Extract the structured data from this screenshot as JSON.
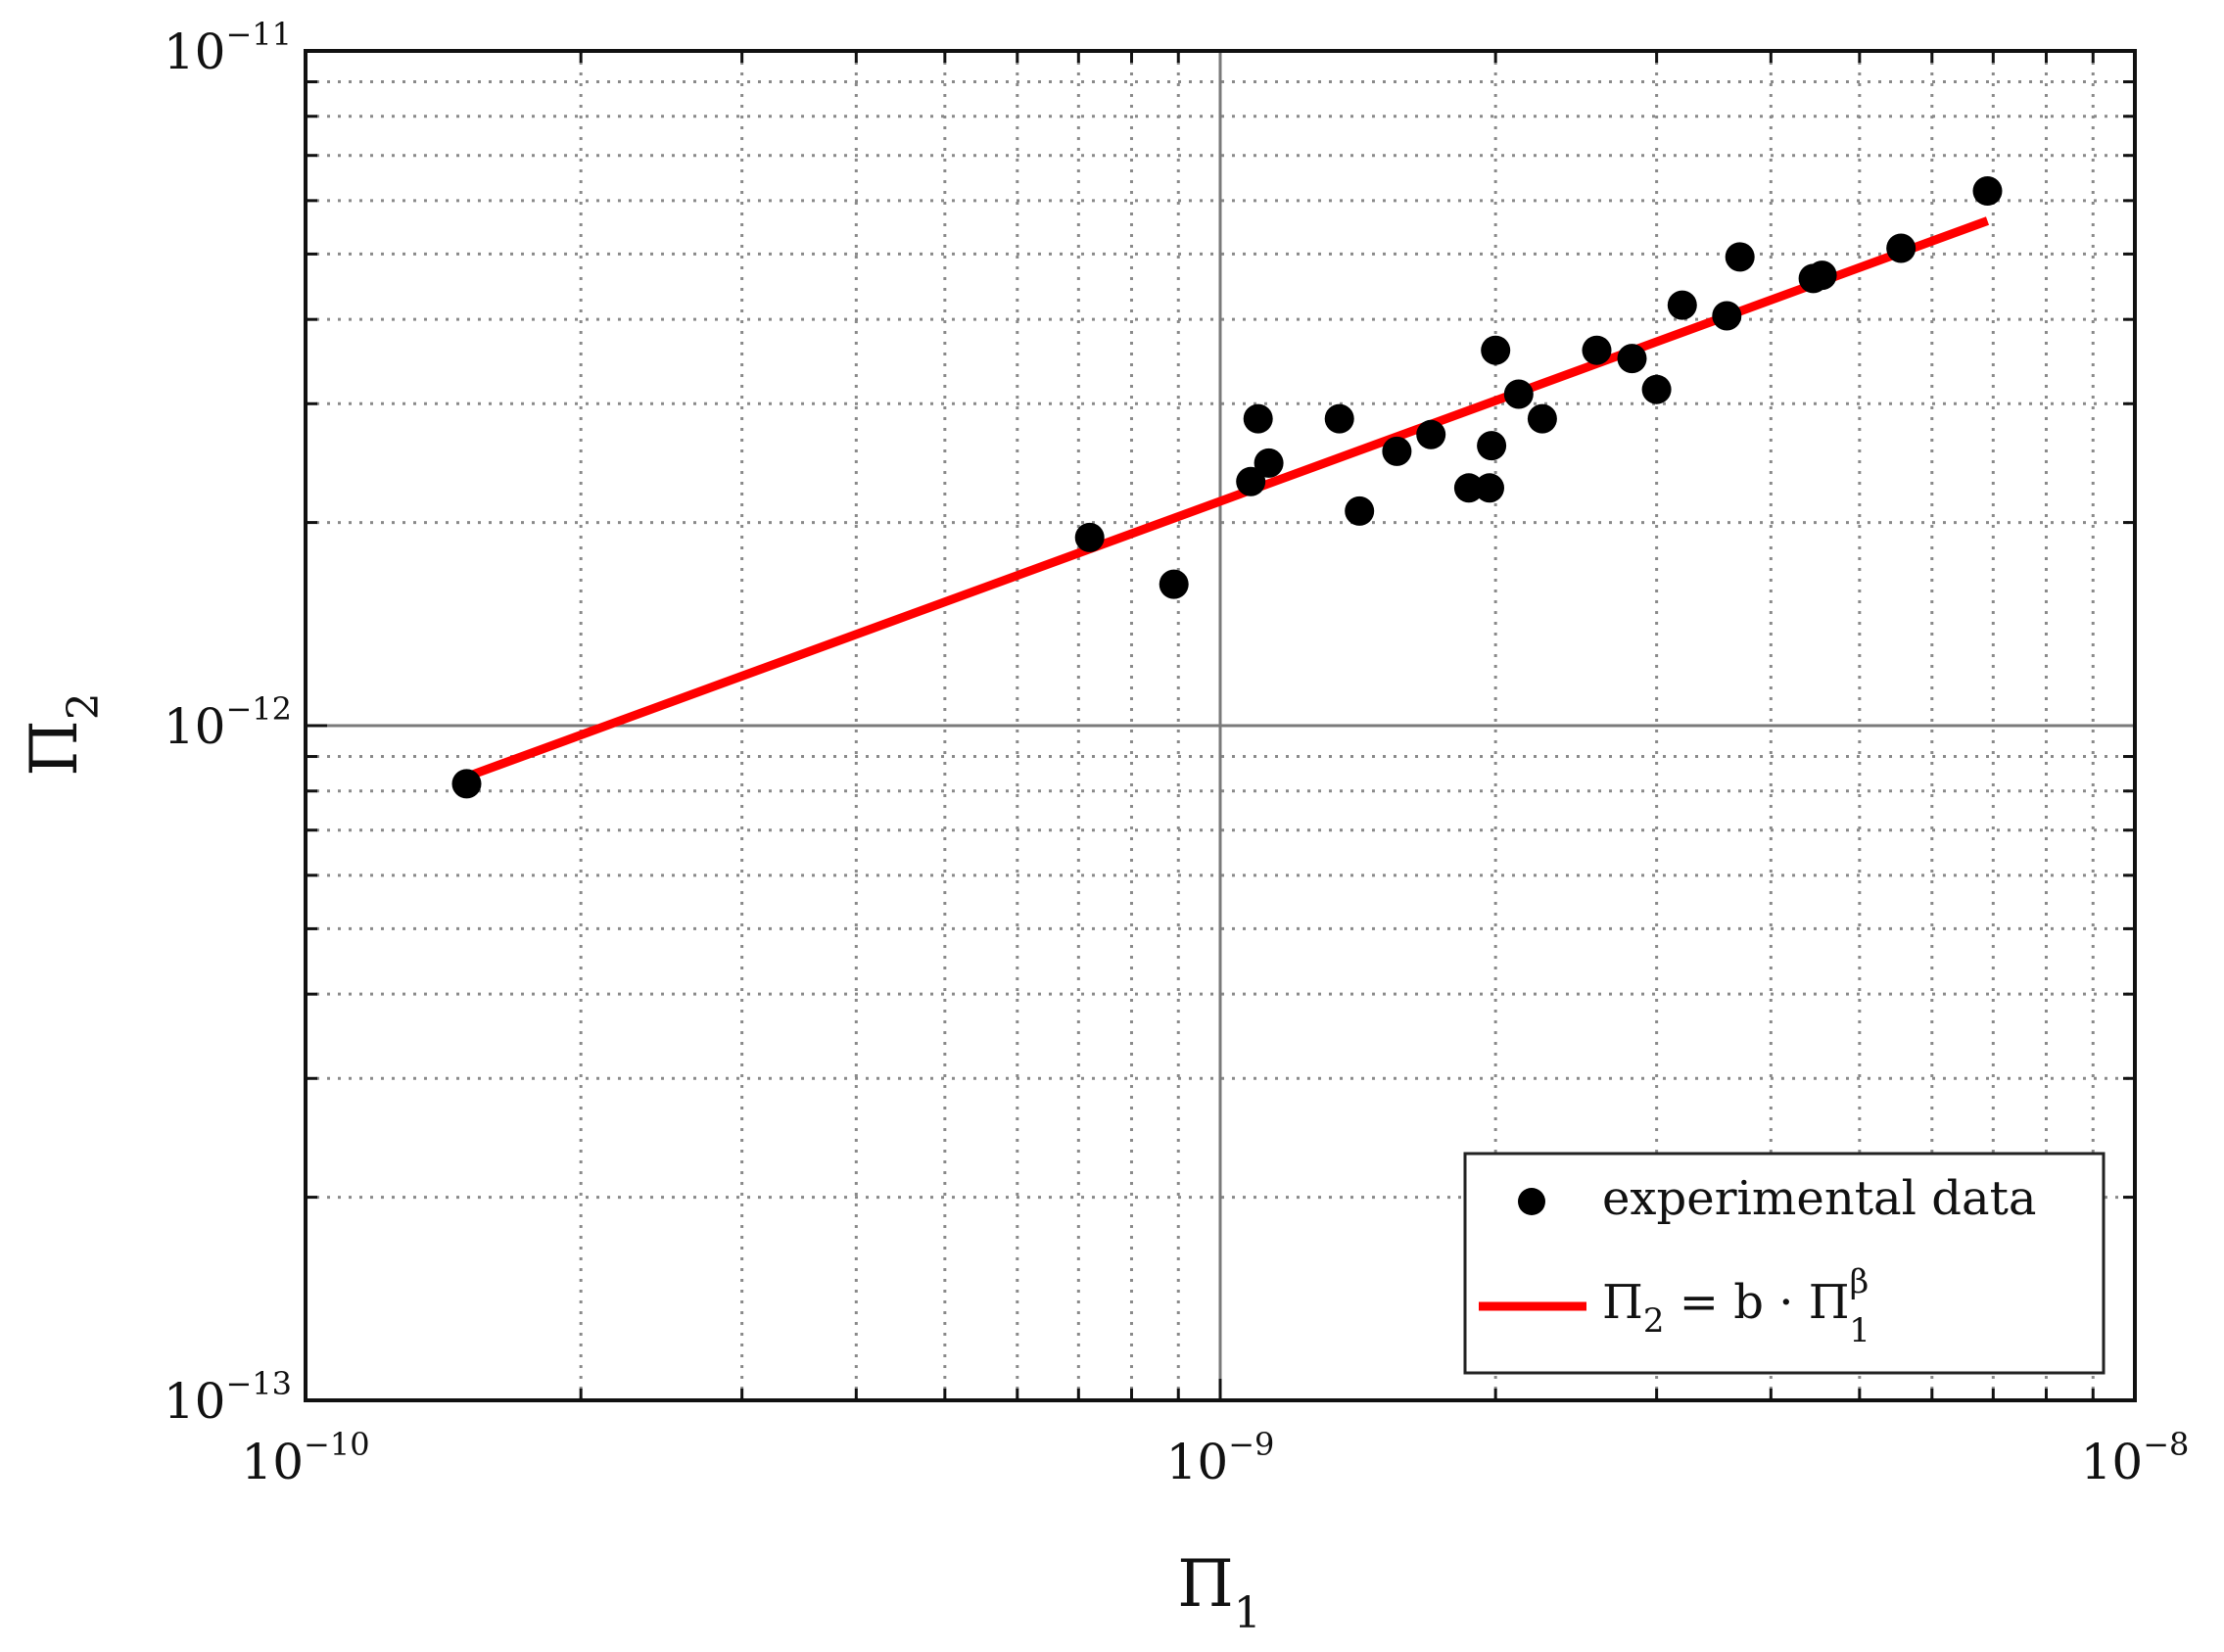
{
  "chart_data": {
    "type": "scatter",
    "x_scale": "log",
    "y_scale": "log",
    "xlim": [
      1e-10,
      1e-08
    ],
    "ylim": [
      1e-13,
      1e-11
    ],
    "x_ticks": [
      {
        "base": "10",
        "exp": "−10"
      },
      {
        "base": "10",
        "exp": "−9"
      },
      {
        "base": "10",
        "exp": "−8"
      }
    ],
    "y_ticks": [
      {
        "base": "10",
        "exp": "−13"
      },
      {
        "base": "10",
        "exp": "−12"
      },
      {
        "base": "10",
        "exp": "−11"
      }
    ],
    "xlabel": {
      "symbol": "Π",
      "sub": "1"
    },
    "ylabel": {
      "symbol": "Π",
      "sub": "2"
    },
    "grid": true,
    "legend": {
      "position": "bottom-right",
      "entries": {
        "data": "experimental data",
        "fit_lhs": "Π",
        "fit_lhs_sub": "2",
        "fit_mid": " = b · Π",
        "fit_sup": "β",
        "fit_sub": "1"
      }
    },
    "series": [
      {
        "name": "experimental data",
        "kind": "scatter",
        "color": "#000000",
        "points": [
          [
            1.5e-10,
            8.2e-13
          ],
          [
            7.2e-10,
            1.9e-12
          ],
          [
            8.9e-10,
            1.62e-12
          ],
          [
            1.08e-09,
            2.3e-12
          ],
          [
            1.1e-09,
            2.85e-12
          ],
          [
            1.13e-09,
            2.45e-12
          ],
          [
            1.35e-09,
            2.85e-12
          ],
          [
            1.42e-09,
            2.08e-12
          ],
          [
            1.56e-09,
            2.55e-12
          ],
          [
            1.7e-09,
            2.7e-12
          ],
          [
            1.87e-09,
            2.25e-12
          ],
          [
            1.97e-09,
            2.25e-12
          ],
          [
            1.98e-09,
            2.6e-12
          ],
          [
            2e-09,
            3.6e-12
          ],
          [
            2.12e-09,
            3.1e-12
          ],
          [
            2.25e-09,
            2.85e-12
          ],
          [
            2.58e-09,
            3.6e-12
          ],
          [
            2.82e-09,
            3.5e-12
          ],
          [
            3e-09,
            3.15e-12
          ],
          [
            3.2e-09,
            4.2e-12
          ],
          [
            3.58e-09,
            4.05e-12
          ],
          [
            3.7e-09,
            4.95e-12
          ],
          [
            4.45e-09,
            4.6e-12
          ],
          [
            4.55e-09,
            4.65e-12
          ],
          [
            5.55e-09,
            5.1e-12
          ],
          [
            6.9e-09,
            6.2e-12
          ]
        ]
      },
      {
        "name": "fit",
        "kind": "line",
        "color": "#ff0000",
        "points": [
          [
            1.5e-10,
            8.4e-13
          ],
          [
            6.9e-09,
            5.6e-12
          ]
        ]
      }
    ]
  }
}
